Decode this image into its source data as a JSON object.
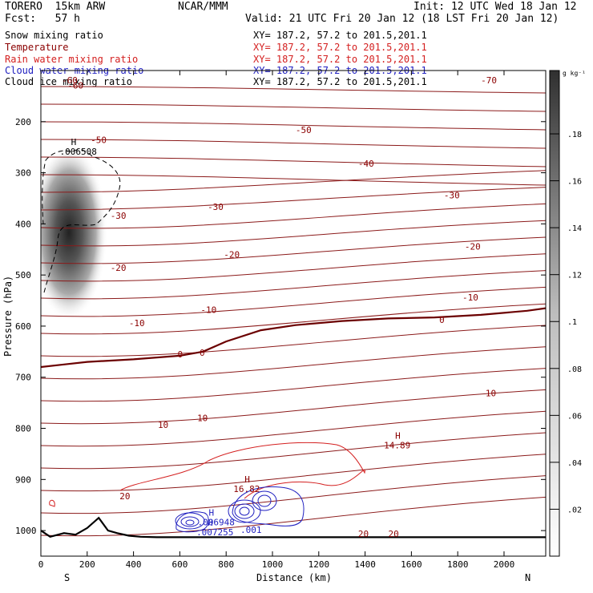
{
  "header": {
    "model": "TORERO  15km ARW",
    "source": "NCAR/MMM",
    "init": "Init: 12 UTC Wed 18 Jan 12",
    "fcst": "Fcst:   57 h",
    "valid": "Valid: 21 UTC Fri 20 Jan 12 (18 LST Fri 20 Jan 12)"
  },
  "legend": [
    {
      "label": "Snow mixing ratio",
      "xy": "XY= 187.2, 57.2 to 201.5,201.1",
      "color": "#000000"
    },
    {
      "label": "Temperature",
      "xy": "XY= 187.2, 57.2 to 201.5,201.1",
      "color": "#8b0000"
    },
    {
      "label": "Rain water mixing ratio",
      "xy": "XY= 187.2, 57.2 to 201.5,201.1",
      "color": "#d42020"
    },
    {
      "label": "Cloud water mixing ratio",
      "xy": "XY= 187.2, 57.2 to 201.5,201.1",
      "color": "#2020c0"
    },
    {
      "label": "Cloud ice mixing ratio",
      "xy": "XY= 187.2, 57.2 to 201.5,201.1",
      "color": "#000000"
    }
  ],
  "chart_data": {
    "type": "contour cross-section",
    "xlabel": "Distance (km)",
    "ylabel": "Pressure (hPa)",
    "xlim": [
      0,
      2180
    ],
    "ylim": [
      1050,
      100
    ],
    "xticks": [
      0,
      200,
      400,
      600,
      800,
      1000,
      1200,
      1400,
      1600,
      1800,
      2000
    ],
    "yticks": [
      200,
      300,
      400,
      500,
      600,
      700,
      800,
      900,
      1000
    ],
    "x_end_labels": {
      "left": "S",
      "right": "N"
    },
    "colorbar": {
      "unit": "g kg⁻¹",
      "ticks": [
        ".02",
        ".04",
        ".06",
        ".08",
        ".1",
        ".12",
        ".14",
        ".16",
        ".18"
      ]
    },
    "temperature_labels": [
      {
        "x": 90,
        "p": 125,
        "text": "-60"
      },
      {
        "x": 115,
        "p": 135,
        "text": "-60"
      },
      {
        "x": 1900,
        "p": 125,
        "text": "-70"
      },
      {
        "x": 215,
        "p": 242,
        "text": "-50"
      },
      {
        "x": 1100,
        "p": 222,
        "text": "-50"
      },
      {
        "x": 1370,
        "p": 288,
        "text": "-40"
      },
      {
        "x": 300,
        "p": 390,
        "text": "-30"
      },
      {
        "x": 720,
        "p": 373,
        "text": "-30"
      },
      {
        "x": 1740,
        "p": 350,
        "text": "-30"
      },
      {
        "x": 790,
        "p": 466,
        "text": "-20"
      },
      {
        "x": 300,
        "p": 492,
        "text": "-20"
      },
      {
        "x": 1830,
        "p": 450,
        "text": "-20"
      },
      {
        "x": 690,
        "p": 574,
        "text": "-10"
      },
      {
        "x": 380,
        "p": 600,
        "text": "-10"
      },
      {
        "x": 1820,
        "p": 550,
        "text": "-10"
      },
      {
        "x": 590,
        "p": 661,
        "text": "0"
      },
      {
        "x": 685,
        "p": 658,
        "text": "0"
      },
      {
        "x": 1720,
        "p": 594,
        "text": "0"
      },
      {
        "x": 505,
        "p": 799,
        "text": "10"
      },
      {
        "x": 675,
        "p": 786,
        "text": "10"
      },
      {
        "x": 1920,
        "p": 737,
        "text": "10"
      },
      {
        "x": 340,
        "p": 939,
        "text": "20"
      },
      {
        "x": 1370,
        "p": 1012,
        "text": "20"
      },
      {
        "x": 1500,
        "p": 1012,
        "text": "20"
      }
    ],
    "maxima": [
      {
        "x": 130,
        "p": 255,
        "mark": "H",
        "value": ".006508"
      },
      {
        "x": 1530,
        "p": 830,
        "mark": "H",
        "value": "14.89"
      },
      {
        "x": 880,
        "p": 915,
        "mark": "H",
        "value": "16.82"
      },
      {
        "x": 725,
        "p": 980,
        "mark": "H",
        "value": ".006948"
      },
      {
        "x": 720,
        "p": 1000,
        "mark": "H",
        "value": ".007255"
      },
      {
        "x": 910,
        "p": 995,
        "mark": "",
        "value": ".001"
      }
    ],
    "freezing_level_km_hPa": [
      [
        0,
        680
      ],
      [
        100,
        675
      ],
      [
        200,
        670
      ],
      [
        400,
        665
      ],
      [
        600,
        658
      ],
      [
        700,
        650
      ],
      [
        800,
        630
      ],
      [
        950,
        608
      ],
      [
        1100,
        598
      ],
      [
        1300,
        590
      ],
      [
        1500,
        585
      ],
      [
        1700,
        583
      ],
      [
        1900,
        578
      ],
      [
        2100,
        570
      ],
      [
        2180,
        565
      ]
    ],
    "terrain_km_hPa": [
      [
        0,
        1000
      ],
      [
        40,
        1012
      ],
      [
        100,
        1005
      ],
      [
        150,
        1008
      ],
      [
        200,
        995
      ],
      [
        250,
        975
      ],
      [
        290,
        1000
      ],
      [
        330,
        1005
      ],
      [
        380,
        1010
      ],
      [
        430,
        1012
      ],
      [
        500,
        1013
      ],
      [
        2180,
        1013
      ]
    ]
  }
}
